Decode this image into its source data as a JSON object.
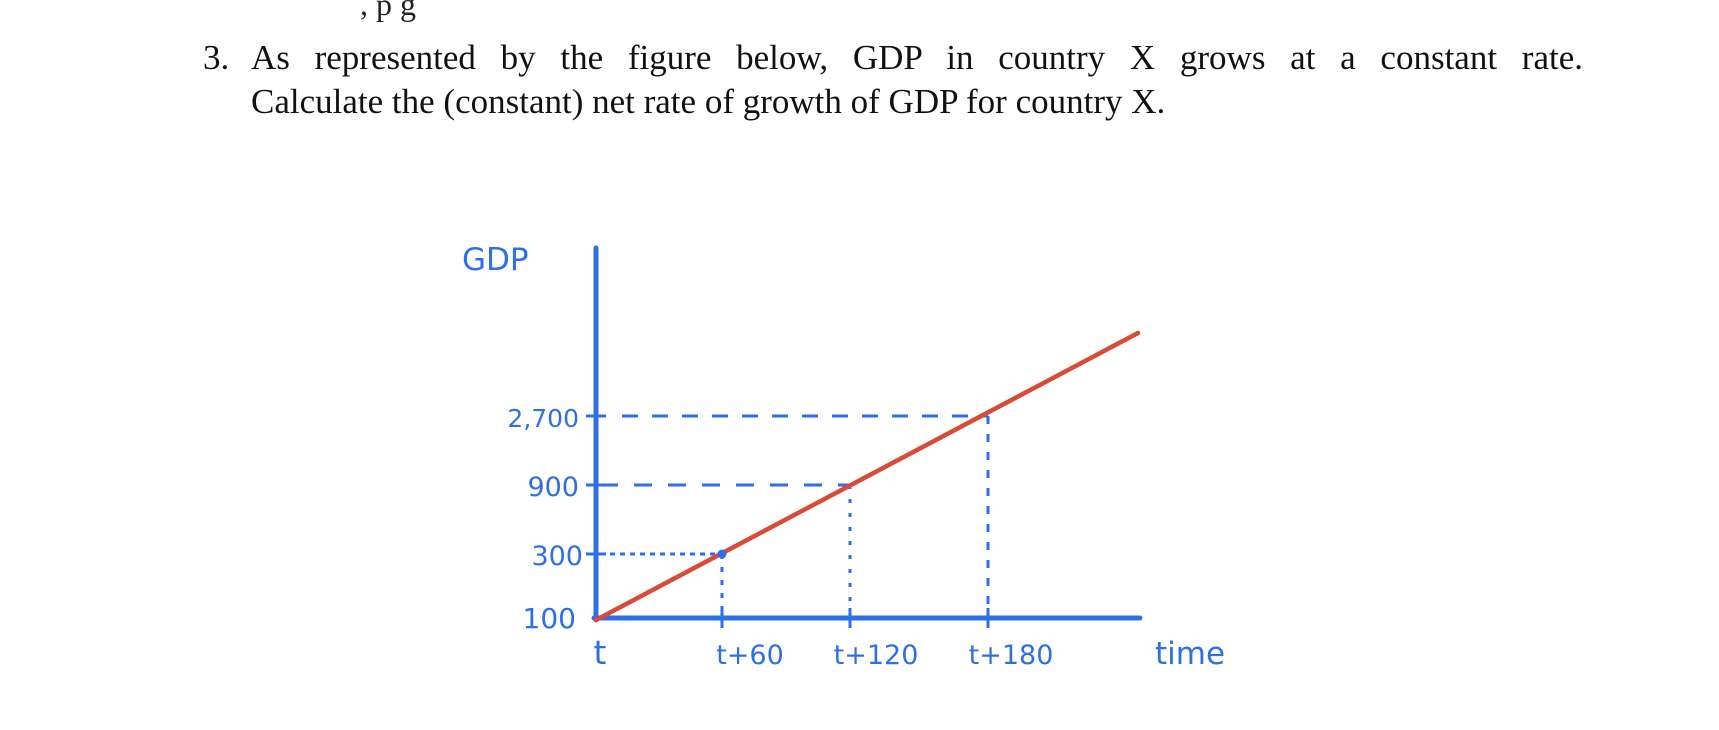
{
  "page": {
    "top_fragment": ", p g",
    "question": {
      "number": "3.",
      "line1": "As represented by the figure below, GDP in country X grows at a constant rate.",
      "line2": "Calculate the (constant) net rate of growth of GDP for country X."
    }
  },
  "chart_data": {
    "type": "line",
    "ylabel": "GDP",
    "xlabel": "time",
    "x_tick_labels": [
      "t",
      "t+60",
      "t+120",
      "t+180"
    ],
    "y_tick_labels": [
      "100",
      "300",
      "900",
      "2,700"
    ],
    "points": [
      {
        "x": "t",
        "y": 100
      },
      {
        "x": "t+60",
        "y": 300
      },
      {
        "x": "t+120",
        "y": 900
      },
      {
        "x": "t+180",
        "y": 2700
      }
    ],
    "y_axis_scale": "logarithmic (equal spacing per tripling)",
    "line_color": "#d94a38",
    "axis_color": "#2f6fe6",
    "guide_lines": "dashed",
    "grid": false
  }
}
